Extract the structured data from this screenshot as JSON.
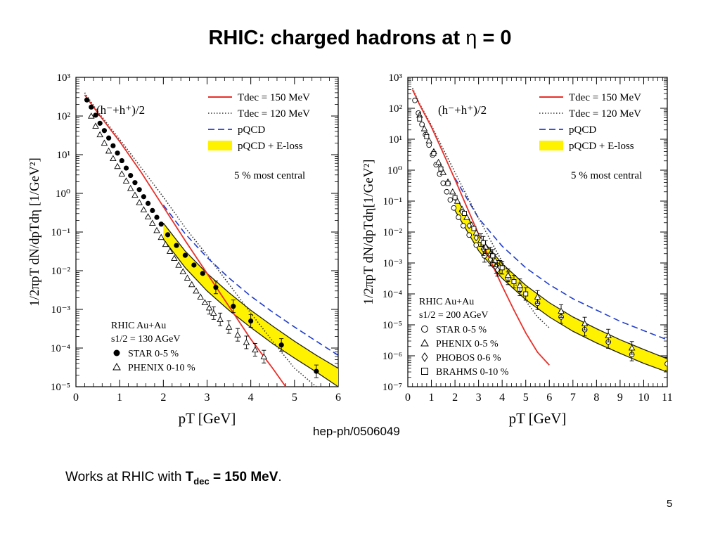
{
  "slide": {
    "title_prefix": "RHIC:   charged hadrons at ",
    "title_eta": "η",
    "title_suffix": " = 0",
    "reference": "hep-ph/0506049",
    "caption_text": "Works at  RHIC with ",
    "caption_bold_T": "T",
    "caption_bold_sub": "dec",
    "caption_bold_rest": " = 150 MeV",
    "caption_end": ".",
    "page_number": "5"
  },
  "colors": {
    "hydro150": "#e8302a",
    "hydro120": "#333333",
    "pqcd": "#1f3ccf",
    "eloss_fill": "#fff200",
    "eloss_edge": "#222222"
  },
  "chart_data": [
    {
      "type": "scatter",
      "panel": "left",
      "yscale": "log",
      "xlabel": "pT [GeV]",
      "ylabel": "1/2πpT dN/dpTdη [1/GeV²]",
      "xlim": [
        0,
        6
      ],
      "ylim": [
        1e-05,
        1000
      ],
      "xticks": [
        "0",
        "1",
        "2",
        "3",
        "4",
        "5",
        "6"
      ],
      "yticks": [
        "10⁻⁵",
        "10⁻⁴",
        "10⁻³",
        "10⁻²",
        "10⁻¹",
        "10⁰",
        "10¹",
        "10²",
        "10³"
      ],
      "panel_label": "(h⁻+h⁺)/2",
      "centrality_note": "5 % most central",
      "legend": [
        {
          "label": "Tdec = 150 MeV",
          "style": "red-solid"
        },
        {
          "label": "Tdec = 120 MeV",
          "style": "black-dotted"
        },
        {
          "label": "pQCD",
          "style": "blue-dashed"
        },
        {
          "label": "pQCD + E-loss",
          "style": "yellow-band"
        }
      ],
      "system_lines": [
        "RHIC Au+Au",
        "s1/2 = 130 AGeV"
      ],
      "data_legend": [
        {
          "label": "STAR 0-5 %",
          "marker": "filled-circle"
        },
        {
          "label": "PHENIX 0-10 %",
          "marker": "open-triangle"
        }
      ],
      "curves": {
        "hydro150": {
          "x": [
            0.2,
            0.5,
            1.0,
            1.5,
            2.0,
            2.5,
            3.0,
            3.5,
            4.0,
            4.5,
            4.8
          ],
          "y": [
            350,
            120,
            22,
            3.4,
            0.45,
            0.06,
            0.0085,
            0.0012,
            0.00017,
            3e-05,
            1e-05
          ]
        },
        "hydro120": {
          "x": [
            0.2,
            0.5,
            1.0,
            1.5,
            2.0,
            2.5,
            3.0,
            3.5,
            4.0,
            4.5,
            5.0,
            5.5
          ],
          "y": [
            400,
            130,
            25,
            4.5,
            0.8,
            0.13,
            0.025,
            0.0045,
            0.0008,
            0.00015,
            3e-05,
            1e-05
          ]
        },
        "pqcd": {
          "x": [
            2.0,
            2.5,
            3.0,
            3.5,
            4.0,
            4.5,
            5.0,
            5.5,
            6.0
          ],
          "y": [
            0.5,
            0.09,
            0.022,
            0.0065,
            0.0022,
            0.00085,
            0.00035,
            0.00015,
            6.5e-05
          ]
        },
        "eloss_upper": {
          "x": [
            2.0,
            2.5,
            3.0,
            3.5,
            4.0,
            4.5,
            5.0,
            5.5,
            6.0
          ],
          "y": [
            0.17,
            0.032,
            0.0085,
            0.0027,
            0.00095,
            0.00037,
            0.00015,
            6.5e-05,
            3e-05
          ]
        },
        "eloss_lower": {
          "x": [
            2.0,
            2.5,
            3.0,
            3.5,
            4.0,
            4.5,
            5.0,
            5.5,
            6.0
          ],
          "y": [
            0.065,
            0.012,
            0.003,
            0.00095,
            0.00034,
            0.00013,
            5.5e-05,
            2.4e-05,
            1e-05
          ]
        }
      },
      "series": [
        {
          "name": "STAR 0-5 %",
          "marker": "filled-circle",
          "x": [
            0.25,
            0.35,
            0.45,
            0.55,
            0.65,
            0.75,
            0.85,
            0.95,
            1.05,
            1.15,
            1.25,
            1.35,
            1.45,
            1.55,
            1.65,
            1.75,
            1.85,
            1.95,
            2.1,
            2.3,
            2.5,
            2.7,
            2.9,
            3.2,
            3.6,
            4.0,
            4.7,
            5.5
          ],
          "y": [
            260,
            170,
            105,
            65,
            42,
            27,
            17,
            11,
            7.0,
            4.5,
            2.9,
            1.9,
            1.25,
            0.82,
            0.55,
            0.36,
            0.24,
            0.16,
            0.085,
            0.045,
            0.025,
            0.014,
            0.0085,
            0.0037,
            0.0012,
            0.0005,
            0.00012,
            2.5e-05
          ]
        },
        {
          "name": "PHENIX 0-10 %",
          "marker": "open-triangle",
          "x": [
            0.35,
            0.45,
            0.55,
            0.65,
            0.75,
            0.85,
            0.95,
            1.05,
            1.15,
            1.25,
            1.35,
            1.45,
            1.55,
            1.65,
            1.75,
            1.85,
            1.95,
            2.05,
            2.15,
            2.25,
            2.35,
            2.45,
            2.55,
            2.65,
            2.75,
            2.85,
            2.95,
            3.05,
            3.15,
            3.3,
            3.5,
            3.7,
            3.9,
            4.1,
            4.3
          ],
          "y": [
            100,
            55,
            33,
            20,
            12.5,
            8,
            5,
            3.2,
            2.1,
            1.35,
            0.9,
            0.58,
            0.38,
            0.25,
            0.17,
            0.11,
            0.073,
            0.048,
            0.032,
            0.021,
            0.014,
            0.0095,
            0.0065,
            0.0044,
            0.003,
            0.0021,
            0.0015,
            0.0011,
            0.0008,
            0.00055,
            0.00035,
            0.00022,
            0.00014,
            9e-05,
            6e-05
          ]
        }
      ]
    },
    {
      "type": "scatter",
      "panel": "right",
      "yscale": "log",
      "xlabel": "pT [GeV]",
      "ylabel": "1/2πpT dN/dpTdη[1/GeV²]",
      "xlim": [
        0,
        11
      ],
      "ylim": [
        1e-07,
        1000
      ],
      "xticks": [
        "0",
        "1",
        "2",
        "3",
        "4",
        "5",
        "6",
        "7",
        "8",
        "9",
        "10",
        "11"
      ],
      "yticks": [
        "10⁻⁷",
        "10⁻⁶",
        "10⁻⁵",
        "10⁻⁴",
        "10⁻³",
        "10⁻²",
        "10⁻¹",
        "10⁰",
        "10¹",
        "10²",
        "10³"
      ],
      "panel_label": "(h⁻+h⁺)/2",
      "centrality_note": "5 % most central",
      "legend": [
        {
          "label": "Tdec = 150 MeV",
          "style": "red-solid"
        },
        {
          "label": "Tdec = 120 MeV",
          "style": "black-dotted"
        },
        {
          "label": "pQCD",
          "style": "blue-dashed"
        },
        {
          "label": "pQCD + E-loss",
          "style": "yellow-band"
        }
      ],
      "system_lines": [
        "RHIC Au+Au",
        "s1/2 = 200 AGeV"
      ],
      "data_legend": [
        {
          "label": "STAR 0-5 %",
          "marker": "open-circle"
        },
        {
          "label": "PHENIX 0-5 %",
          "marker": "open-triangle"
        },
        {
          "label": "PHOBOS 0-6 %",
          "marker": "open-diamond"
        },
        {
          "label": "BRAHMS 0-10 %",
          "marker": "open-square"
        }
      ],
      "curves": {
        "hydro150": {
          "x": [
            0.2,
            0.5,
            1.0,
            1.5,
            2.0,
            2.5,
            3.0,
            3.5,
            4.0,
            4.5,
            5.0,
            5.5,
            6.0
          ],
          "y": [
            400,
            130,
            25,
            3.6,
            0.5,
            0.065,
            0.0085,
            0.0012,
            0.00018,
            3e-05,
            5.5e-06,
            1.3e-06,
            5e-07
          ]
        },
        "hydro120": {
          "x": [
            0.2,
            0.5,
            1.0,
            1.5,
            2.0,
            2.5,
            3.0,
            3.5,
            4.0,
            4.5,
            5.0,
            5.5,
            6.0
          ],
          "y": [
            450,
            140,
            28,
            4.8,
            0.85,
            0.15,
            0.028,
            0.0055,
            0.0011,
            0.00025,
            6e-05,
            1.8e-05,
            8e-06
          ]
        },
        "pqcd": {
          "x": [
            2,
            3,
            4,
            5,
            6,
            7,
            8,
            9,
            10,
            11
          ],
          "y": [
            0.55,
            0.028,
            0.0035,
            0.0007,
            0.0002,
            7e-05,
            3e-05,
            1.3e-05,
            6.5e-06,
            3.3e-06
          ]
        },
        "eloss_upper": {
          "x": [
            2,
            3,
            4,
            5,
            6,
            7,
            8,
            9,
            10,
            11
          ],
          "y": [
            0.15,
            0.0075,
            0.00095,
            0.00019,
            5.2e-05,
            1.8e-05,
            7.5e-06,
            3.3e-06,
            1.6e-06,
            8e-07
          ]
        },
        "eloss_lower": {
          "x": [
            2,
            3,
            4,
            5,
            6,
            7,
            8,
            9,
            10,
            11
          ],
          "y": [
            0.05,
            0.0025,
            0.00032,
            6.5e-05,
            1.8e-05,
            6.2e-06,
            2.6e-06,
            1.2e-06,
            5.7e-07,
            3e-07
          ]
        }
      },
      "series": [
        {
          "name": "STAR 0-5 %",
          "marker": "open-circle",
          "x": [
            0.3,
            0.45,
            0.6,
            0.75,
            0.9,
            1.05,
            1.2,
            1.35,
            1.5,
            1.65,
            1.8,
            1.95,
            2.15,
            2.35,
            2.6,
            2.9,
            3.25,
            3.75,
            4.25,
            4.75,
            5.5,
            6.5,
            7.5,
            8.5,
            9.5,
            11
          ],
          "y": [
            180,
            70,
            30,
            14,
            6.5,
            3.1,
            1.5,
            0.75,
            0.38,
            0.2,
            0.11,
            0.06,
            0.03,
            0.016,
            0.008,
            0.0038,
            0.0017,
            0.00075,
            0.00032,
            0.00014,
            5e-05,
            1.8e-05,
            7e-06,
            2.8e-06,
            1.1e-06,
            5.5e-07
          ]
        },
        {
          "name": "PHENIX 0-5 %",
          "marker": "open-triangle",
          "x": [
            0.5,
            0.7,
            0.9,
            1.1,
            1.3,
            1.5,
            1.7,
            1.9,
            2.1,
            2.3,
            2.5,
            2.7,
            2.9,
            3.1,
            3.3,
            3.5,
            3.7,
            3.9,
            4.25,
            4.75,
            5.5,
            6.5,
            7.5,
            8.5,
            9.5
          ],
          "y": [
            60,
            22,
            9,
            4,
            1.8,
            0.85,
            0.42,
            0.2,
            0.1,
            0.055,
            0.03,
            0.017,
            0.0095,
            0.0055,
            0.0033,
            0.002,
            0.0012,
            0.00075,
            0.0004,
            0.00019,
            8e-05,
            2.8e-05,
            1.1e-05,
            4.5e-06,
            1.8e-06
          ]
        },
        {
          "name": "PHOBOS 0-6 %",
          "marker": "open-diamond",
          "x": [
            0.5,
            0.8,
            1.1,
            1.4,
            1.7,
            2.0,
            2.3,
            2.6,
            2.9,
            3.2,
            3.5,
            3.8
          ],
          "y": [
            50,
            14,
            3.8,
            1.2,
            0.4,
            0.13,
            0.045,
            0.016,
            0.0065,
            0.0028,
            0.0013,
            0.0006
          ]
        },
        {
          "name": "BRAHMS 0-10 %",
          "marker": "open-square",
          "x": [
            0.5,
            0.8,
            1.1,
            1.4,
            1.7,
            2.0,
            2.4,
            2.8,
            3.2,
            3.6,
            4.0,
            4.5,
            5.0
          ],
          "y": [
            45,
            12,
            3.4,
            1.1,
            0.37,
            0.13,
            0.04,
            0.013,
            0.0045,
            0.0017,
            0.0007,
            0.00025,
            0.0001
          ]
        }
      ]
    }
  ]
}
